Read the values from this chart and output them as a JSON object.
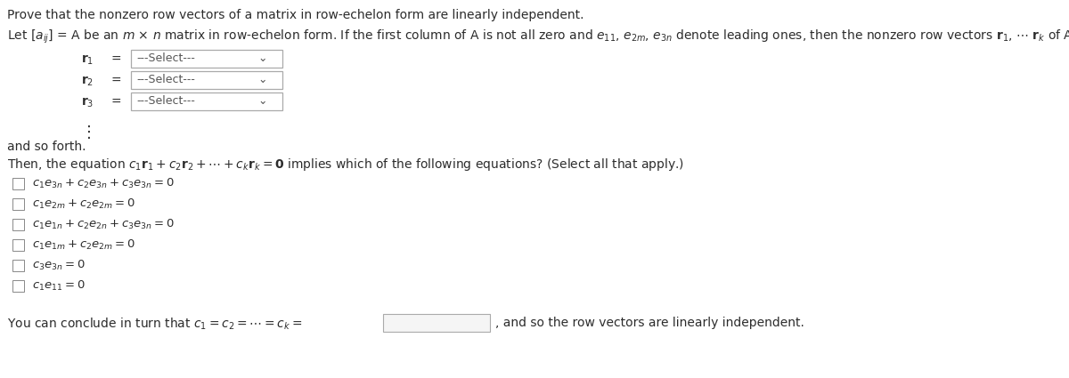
{
  "bg_color": "#ffffff",
  "text_color": "#2c2c2c",
  "title": "Prove that the nonzero row vectors of a matrix in row-echelon form are linearly independent.",
  "let_text": "Let $\\left[a_{ij}\\right]$ = A be an $m$ × $n$ matrix in row-echelon form. If the first column of A is not all zero and $e_{11}$, $e_{2m}$, $e_{3n}$ denote leading ones, then the nonzero row vectors $\\mathbf{r}_1$, $\\cdots$ $\\mathbf{r}_k$ of A, have the form of",
  "dropdown_labels": [
    "$\\mathbf{r}_1$",
    "$\\mathbf{r}_2$",
    "$\\mathbf{r}_3$"
  ],
  "and_so_forth": "and so forth.",
  "then_text": "Then, the equation $c_1\\mathbf{r}_1 + c_2\\mathbf{r}_2 + \\cdots + c_k\\mathbf{r}_k = \\mathbf{0}$ implies which of the following equations? (Select all that apply.)",
  "checkboxes": [
    "$c_1e_{3n} + c_2e_{3n} + c_3e_{3n} = 0$",
    "$c_1e_{2m} + c_2e_{2m} = 0$",
    "$c_1e_{1n} + c_2e_{2n} + c_3e_{3n} = 0$",
    "$c_1e_{1m} + c_2e_{2m} = 0$",
    "$c_3e_{3n} = 0$",
    "$c_1e_{11} = 0$"
  ],
  "conclude_text": "You can conclude in turn that $c_1 = c_2 = \\cdots = c_k = $",
  "conclude_end": ", and so the row vectors are linearly independent.",
  "fig_width": 12.0,
  "fig_height": 4.25,
  "dpi": 100
}
